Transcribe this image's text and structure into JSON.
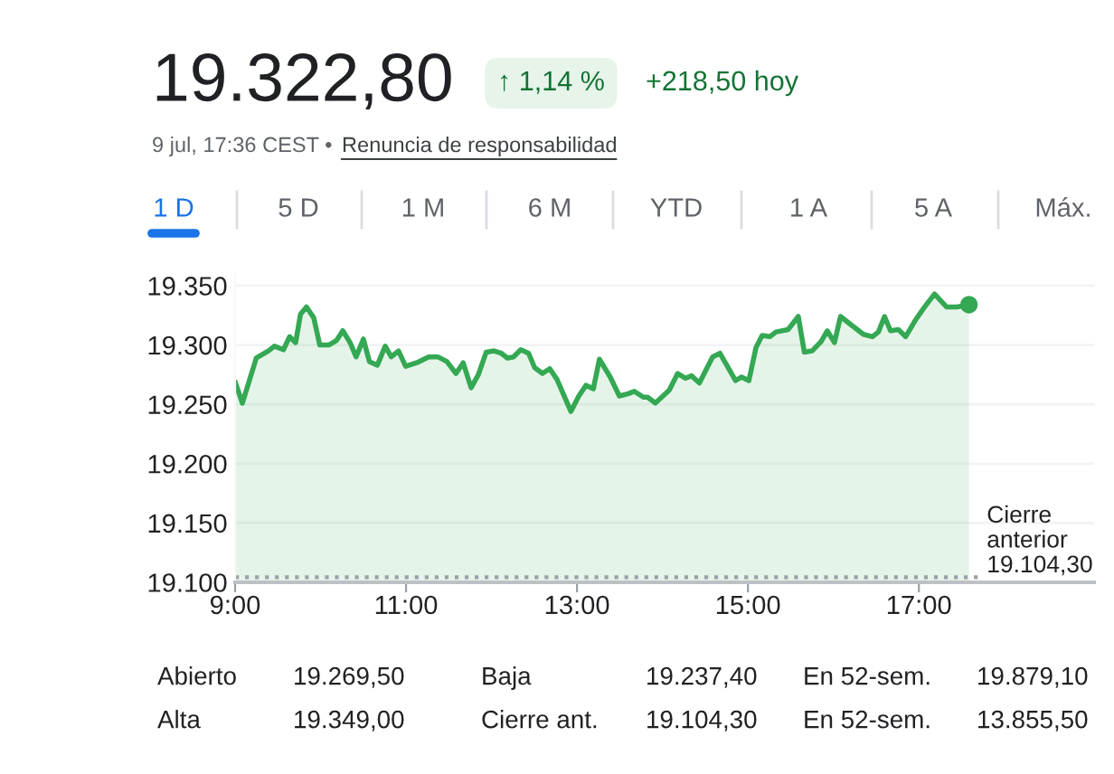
{
  "chart_data": {
    "type": "area",
    "x": [
      9.0,
      9.085,
      9.248,
      9.389,
      9.46,
      9.566,
      9.637,
      9.708,
      9.765,
      9.835,
      9.92,
      9.991,
      10.097,
      10.189,
      10.26,
      10.345,
      10.416,
      10.501,
      10.572,
      10.664,
      10.756,
      10.827,
      10.912,
      10.996,
      11.124,
      11.265,
      11.372,
      11.478,
      11.584,
      11.669,
      11.761,
      11.846,
      11.938,
      12.03,
      12.115,
      12.186,
      12.257,
      12.342,
      12.434,
      12.504,
      12.596,
      12.681,
      12.766,
      12.929,
      13.021,
      13.106,
      13.191,
      13.262,
      13.389,
      13.496,
      13.602,
      13.67,
      13.776,
      13.825,
      13.917,
      14.079,
      14.178,
      14.27,
      14.34,
      14.432,
      14.587,
      14.672,
      14.855,
      14.926,
      15.011,
      15.095,
      15.166,
      15.257,
      15.328,
      15.469,
      15.589,
      15.66,
      15.751,
      15.857,
      15.928,
      16.012,
      16.083,
      16.224,
      16.351,
      16.457,
      16.527,
      16.598,
      16.668,
      16.76,
      16.845,
      16.951,
      17.056,
      17.183,
      17.325,
      17.444,
      17.586
    ],
    "series": [
      {
        "color": "#34a853",
        "values": [
          19269,
          19251,
          19289,
          19295,
          19299,
          19296,
          19307,
          19302,
          19326,
          19332,
          19323,
          19300,
          19300,
          19304,
          19312,
          19302,
          19290,
          19305,
          19286,
          19283,
          19299,
          19290,
          19295,
          19282,
          19285,
          19290,
          19290,
          19286,
          19276,
          19285,
          19264,
          19275,
          19294,
          19295,
          19293,
          19289,
          19290,
          19296,
          19293,
          19281,
          19276,
          19280,
          19271,
          19244,
          19257,
          19266,
          19263,
          19288,
          19273,
          19257,
          19259,
          19261,
          19256,
          19256,
          19251,
          19262,
          19276,
          19272,
          19274,
          19268,
          19290,
          19293,
          19270,
          19273,
          19270,
          19298,
          19308,
          19307,
          19311,
          19313,
          19324,
          19294,
          19295,
          19303,
          19312,
          19302,
          19324,
          19316,
          19309,
          19307,
          19311,
          19324,
          19312,
          19313,
          19307,
          19320,
          19331,
          19343,
          19332,
          19332,
          19334
        ]
      },
      {
        "type": "scatter",
        "color": "#34a853",
        "x": [
          17.586
        ],
        "values": [
          19334
        ]
      }
    ],
    "xlim": [
      9,
      19.05
    ],
    "ylim": [
      19100,
      19360
    ],
    "xticks": [
      {
        "value": 9,
        "label": "9:00"
      },
      {
        "value": 11,
        "label": "11:00"
      },
      {
        "value": 13,
        "label": "13:00"
      },
      {
        "value": 15,
        "label": "15:00"
      },
      {
        "value": 17,
        "label": "17:00"
      }
    ],
    "yticks": [
      {
        "value": 19100,
        "label": "19.100"
      },
      {
        "value": 19150,
        "label": "19.150"
      },
      {
        "value": 19200,
        "label": "19.200"
      },
      {
        "value": 19250,
        "label": "19.250"
      },
      {
        "value": 19300,
        "label": "19.300"
      },
      {
        "value": 19350,
        "label": "19.350"
      }
    ],
    "grid": "y",
    "ref_lines": [
      {
        "axis": "y",
        "value": 19104.3,
        "label": "Cierre\nanterior\n19.104,30",
        "color": "#9aa0a6",
        "line_style": "dotted"
      }
    ],
    "annotations": [
      "19.322,80",
      "↑ 1,14 %",
      "+218,50 hoy",
      "9 jul, 17:36 CEST •",
      "Renuncia de responsabilidad",
      "1 D",
      "5 D",
      "1 M",
      "6 M",
      "YTD",
      "1 A",
      "5 A",
      "Máx.",
      "Abierto",
      "19.269,50",
      "Baja",
      "19.237,40",
      "En 52-sem.",
      "19.879,10",
      "Alta",
      "19.349,00",
      "Cierre ant.",
      "19.104,30",
      "En 52-sem.",
      "13.855,50"
    ]
  }
}
